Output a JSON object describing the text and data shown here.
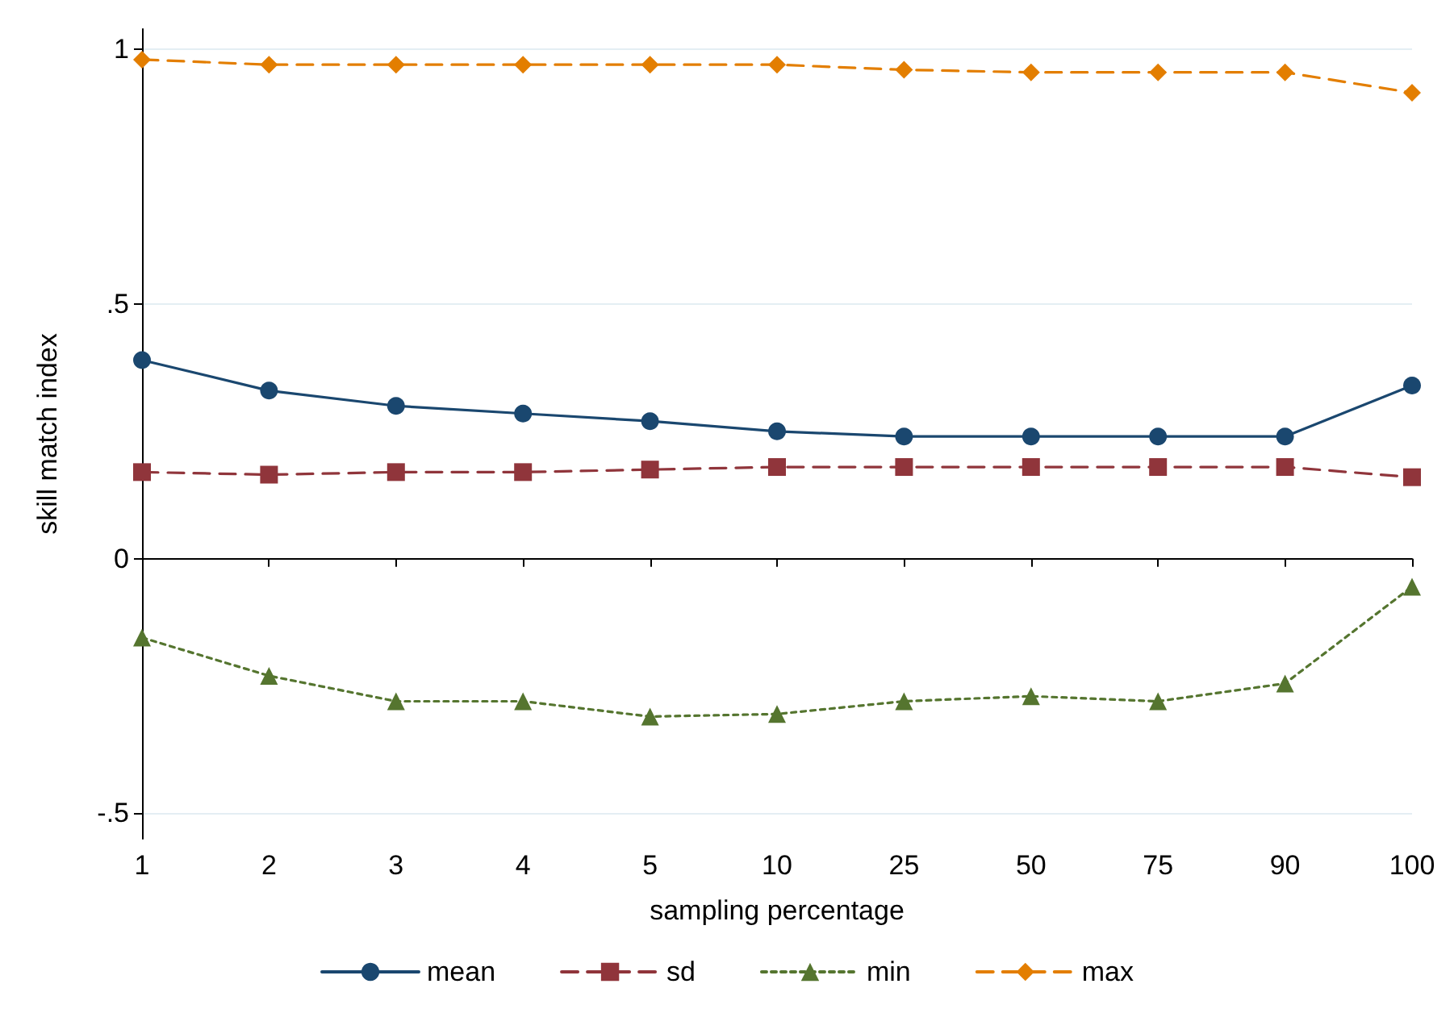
{
  "chart_data": {
    "type": "line",
    "xlabel": "sampling percentage",
    "ylabel": "skill match index",
    "categories": [
      "1",
      "2",
      "3",
      "4",
      "5",
      "10",
      "25",
      "50",
      "75",
      "90",
      "100"
    ],
    "ylim": [
      -0.55,
      1.04
    ],
    "yticks": [
      {
        "value": -0.5,
        "label": "-.5"
      },
      {
        "value": 0,
        "label": "0"
      },
      {
        "value": 0.5,
        "label": ".5"
      },
      {
        "value": 1,
        "label": "1"
      }
    ],
    "grid": "y",
    "legend": "bottom",
    "series": [
      {
        "name": "mean",
        "color": "#1a476f",
        "marker": "circle",
        "line_style": "solid",
        "values": [
          0.39,
          0.33,
          0.3,
          0.285,
          0.27,
          0.25,
          0.24,
          0.24,
          0.24,
          0.24,
          0.34
        ]
      },
      {
        "name": "sd",
        "color": "#90353b",
        "marker": "square",
        "line_style": "dashed",
        "values": [
          0.17,
          0.165,
          0.17,
          0.17,
          0.175,
          0.18,
          0.18,
          0.18,
          0.18,
          0.18,
          0.16
        ]
      },
      {
        "name": "min",
        "color": "#55752f",
        "marker": "triangle",
        "line_style": "dotted",
        "values": [
          -0.155,
          -0.23,
          -0.28,
          -0.28,
          -0.31,
          -0.305,
          -0.28,
          -0.27,
          -0.28,
          -0.245,
          -0.055
        ]
      },
      {
        "name": "max",
        "color": "#e37e00",
        "marker": "diamond",
        "line_style": "dashed",
        "values": [
          0.98,
          0.97,
          0.97,
          0.97,
          0.97,
          0.97,
          0.96,
          0.955,
          0.955,
          0.955,
          0.915
        ]
      }
    ]
  }
}
